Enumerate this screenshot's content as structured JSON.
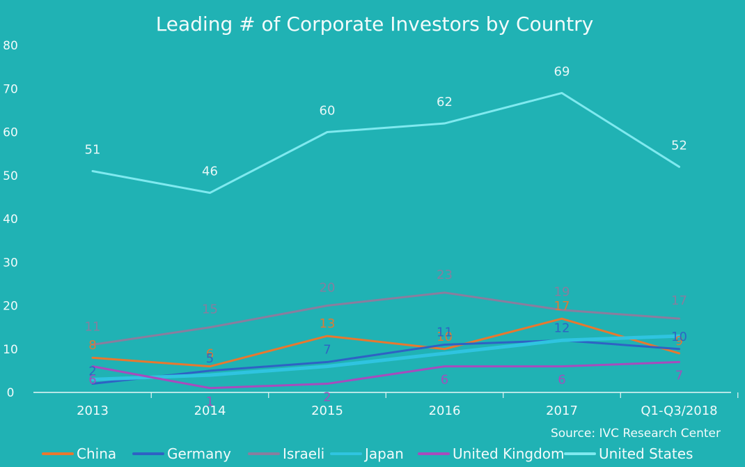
{
  "colors": {
    "background": "#20b2b4",
    "text": "#f2fbfb",
    "axis": "#e8f7f7"
  },
  "chart_data": {
    "type": "line",
    "title": "Leading # of Corporate Investors by Country",
    "source": "Source: IVC Research Center",
    "xlabel": "",
    "ylabel": "",
    "categories": [
      "2013",
      "2014",
      "2015",
      "2016",
      "2017",
      "Q1-Q3/2018"
    ],
    "ylim": [
      0,
      80
    ],
    "yticks": [
      0,
      10,
      20,
      30,
      40,
      50,
      60,
      70,
      80
    ],
    "series": [
      {
        "name": "China",
        "color": "#e8782f",
        "values": [
          8,
          6,
          13,
          10,
          17,
          9
        ]
      },
      {
        "name": "Germany",
        "color": "#2e62c4",
        "values": [
          2,
          5,
          7,
          11,
          12,
          10
        ]
      },
      {
        "name": "Israeli",
        "color": "#8a7d9e",
        "values": [
          11,
          15,
          20,
          23,
          19,
          17
        ]
      },
      {
        "name": "Japan",
        "color": "#2fc4e0",
        "values": [
          3,
          4,
          6,
          9,
          12,
          13
        ]
      },
      {
        "name": "United Kingdom",
        "color": "#a84bbd",
        "values": [
          6,
          1,
          2,
          6,
          6,
          7
        ]
      },
      {
        "name": "United States",
        "color": "#7fe9ef",
        "values": [
          51,
          46,
          60,
          62,
          69,
          52
        ]
      }
    ]
  }
}
